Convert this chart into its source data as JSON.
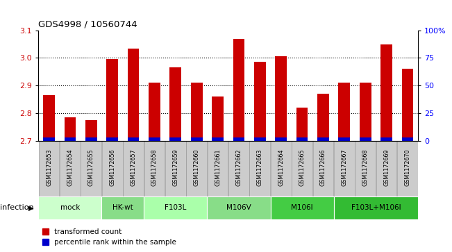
{
  "title": "GDS4998 / 10560744",
  "samples": [
    "GSM1172653",
    "GSM1172654",
    "GSM1172655",
    "GSM1172656",
    "GSM1172657",
    "GSM1172658",
    "GSM1172659",
    "GSM1172660",
    "GSM1172661",
    "GSM1172662",
    "GSM1172663",
    "GSM1172664",
    "GSM1172665",
    "GSM1172666",
    "GSM1172667",
    "GSM1172668",
    "GSM1172669",
    "GSM1172670"
  ],
  "red_values": [
    2.865,
    2.785,
    2.775,
    2.995,
    3.035,
    2.91,
    2.965,
    2.91,
    2.862,
    3.07,
    2.985,
    3.005,
    2.82,
    2.87,
    2.91,
    2.91,
    3.05,
    2.96
  ],
  "blue_values": [
    0.012,
    0.012,
    0.012,
    0.014,
    0.012,
    0.012,
    0.012,
    0.012,
    0.014,
    0.014,
    0.012,
    0.014,
    0.012,
    0.012,
    0.012,
    0.012,
    0.012,
    0.012
  ],
  "groups": [
    {
      "label": "mock",
      "start": 0,
      "end": 3,
      "color": "#ccffcc"
    },
    {
      "label": "HK-wt",
      "start": 3,
      "end": 5,
      "color": "#88dd88"
    },
    {
      "label": "F103L",
      "start": 5,
      "end": 8,
      "color": "#aaffaa"
    },
    {
      "label": "M106V",
      "start": 8,
      "end": 11,
      "color": "#88dd88"
    },
    {
      "label": "M106I",
      "start": 11,
      "end": 14,
      "color": "#44cc44"
    },
    {
      "label": "F103L+M106I",
      "start": 14,
      "end": 18,
      "color": "#33bb33"
    }
  ],
  "ylim_left": [
    2.7,
    3.1
  ],
  "ylim_right": [
    0,
    100
  ],
  "yticks_left": [
    2.7,
    2.8,
    2.9,
    3.0,
    3.1
  ],
  "yticks_right": [
    0,
    25,
    50,
    75,
    100
  ],
  "ytick_right_labels": [
    "0",
    "25",
    "50",
    "75",
    "100%"
  ],
  "bar_color_red": "#cc0000",
  "bar_color_blue": "#0000cc",
  "bar_width": 0.55,
  "baseline": 2.7,
  "legend_red": "transformed count",
  "legend_blue": "percentile rank within the sample",
  "infection_label": "infection",
  "sample_box_color": "#cccccc",
  "sample_box_edge": "#999999"
}
